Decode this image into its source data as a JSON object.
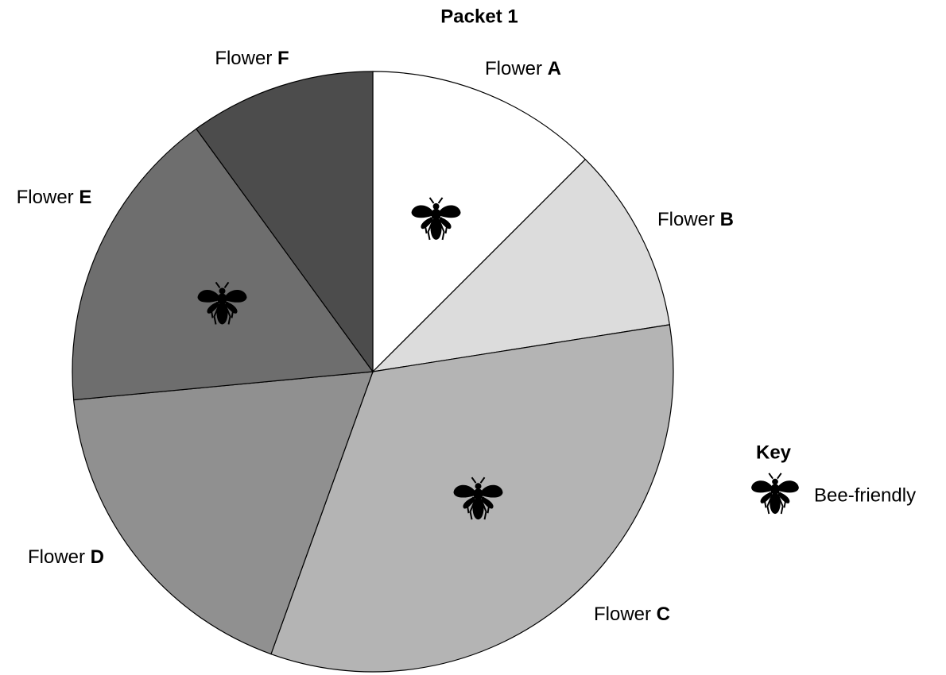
{
  "chart_data": {
    "type": "pie",
    "title": "Packet 1",
    "categories": [
      "Flower A",
      "Flower B",
      "Flower C",
      "Flower D",
      "Flower E",
      "Flower F"
    ],
    "values": [
      12.5,
      10,
      33,
      18,
      16.5,
      10
    ],
    "colors": [
      "#ffffff",
      "#dcdcdc",
      "#b4b4b4",
      "#909090",
      "#6e6e6e",
      "#4c4c4c"
    ],
    "bee_friendly": [
      true,
      false,
      true,
      false,
      true,
      false
    ],
    "legend": {
      "title": "Key",
      "label": "Bee-friendly"
    }
  }
}
